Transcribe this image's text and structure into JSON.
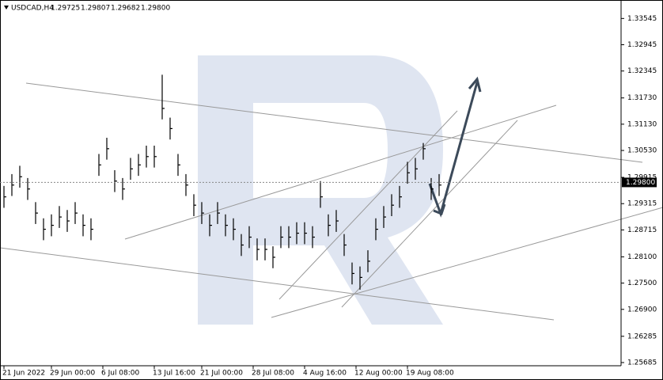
{
  "chart_data": {
    "type": "hlc",
    "title": "USDCAD,H4",
    "quote": [
      "1.29725",
      "1.29807",
      "1.29682",
      "1.29800"
    ],
    "color": "#000000",
    "last_price": {
      "value": 1.298,
      "label": "1.29800"
    },
    "ylim": [
      1.25612,
      1.33967
    ],
    "yticks": [
      {
        "value": 1.33545,
        "label": "1.33545"
      },
      {
        "value": 1.32945,
        "label": "1.32945"
      },
      {
        "value": 1.32345,
        "label": "1.32345"
      },
      {
        "value": 1.3173,
        "label": "1.31730"
      },
      {
        "value": 1.3113,
        "label": "1.31130"
      },
      {
        "value": 1.3053,
        "label": "1.30530"
      },
      {
        "value": 1.29915,
        "label": "1.29915"
      },
      {
        "value": 1.29315,
        "label": "1.29315"
      },
      {
        "value": 1.28715,
        "label": "1.28715"
      },
      {
        "value": 1.281,
        "label": "1.28100"
      },
      {
        "value": 1.275,
        "label": "1.27500"
      },
      {
        "value": 1.269,
        "label": "1.26900"
      },
      {
        "value": 1.26285,
        "label": "1.26285"
      },
      {
        "value": 1.25685,
        "label": "1.25685"
      }
    ],
    "xlim": [
      -0.5,
      78
    ],
    "xticks": [
      {
        "value": 0,
        "label": "21 Jun 2022"
      },
      {
        "value": 6,
        "label": "29 Jun 00:00"
      },
      {
        "value": 12.5,
        "label": "6 Jul 08:00"
      },
      {
        "value": 19,
        "label": "13 Jul 16:00"
      },
      {
        "value": 25,
        "label": "21 Jul 00:00"
      },
      {
        "value": 31.5,
        "label": "28 Jul 08:00"
      },
      {
        "value": 38,
        "label": "4 Aug 16:00"
      },
      {
        "value": 44.5,
        "label": "12 Aug 00:00"
      },
      {
        "value": 51,
        "label": "19 Aug 08:00"
      }
    ],
    "high": [
      1.2972,
      1.2999,
      1.3018,
      1.299,
      1.2935,
      1.2898,
      1.2907,
      1.2926,
      1.2917,
      1.2935,
      1.2907,
      1.2898,
      1.3045,
      1.3082,
      1.3008,
      1.299,
      1.3036,
      1.3045,
      1.3064,
      1.3064,
      1.3226,
      1.3128,
      1.3045,
      1.2999,
      1.2953,
      1.2935,
      1.2907,
      1.2935,
      1.2907,
      1.2898,
      1.2862,
      1.288,
      1.2852,
      1.2852,
      1.2834,
      1.288,
      1.288,
      1.2889,
      1.2889,
      1.288,
      1.2983,
      1.2907,
      1.2917,
      1.2862,
      1.2797,
      1.2788,
      1.2825,
      1.2898,
      1.2926,
      1.2953,
      1.2972,
      1.3027,
      1.3036,
      1.307,
      1.299,
      1.2999
    ],
    "low": [
      1.2922,
      1.2949,
      1.2968,
      1.294,
      1.2885,
      1.2848,
      1.2857,
      1.2876,
      1.2867,
      1.2885,
      1.2857,
      1.2848,
      1.2995,
      1.3032,
      1.2958,
      1.294,
      1.2986,
      1.2995,
      1.3014,
      1.3014,
      1.3124,
      1.3078,
      1.2995,
      1.2949,
      1.2903,
      1.2885,
      1.2857,
      1.2885,
      1.2857,
      1.2848,
      1.2812,
      1.283,
      1.2802,
      1.2802,
      1.2784,
      1.283,
      1.283,
      1.2839,
      1.2839,
      1.283,
      1.2922,
      1.2857,
      1.2867,
      1.2812,
      1.2747,
      1.2735,
      1.2775,
      1.2848,
      1.2876,
      1.2903,
      1.2922,
      1.2977,
      1.2986,
      1.3032,
      1.294,
      1.2949
    ],
    "close": [
      1.2947,
      1.2974,
      1.2993,
      1.2965,
      1.291,
      1.2873,
      1.2882,
      1.2901,
      1.2892,
      1.291,
      1.2882,
      1.2873,
      1.302,
      1.3057,
      1.2983,
      1.2965,
      1.3011,
      1.302,
      1.3039,
      1.3039,
      1.3149,
      1.3103,
      1.302,
      1.2974,
      1.2928,
      1.291,
      1.2882,
      1.291,
      1.2882,
      1.2873,
      1.2837,
      1.2855,
      1.2827,
      1.2827,
      1.2809,
      1.2855,
      1.2855,
      1.2864,
      1.2864,
      1.2855,
      1.2947,
      1.2882,
      1.2892,
      1.2837,
      1.2772,
      1.2763,
      1.28,
      1.2873,
      1.2901,
      1.2928,
      1.2947,
      1.3002,
      1.3011,
      1.3057,
      1.2965,
      1.2974
    ]
  }
}
